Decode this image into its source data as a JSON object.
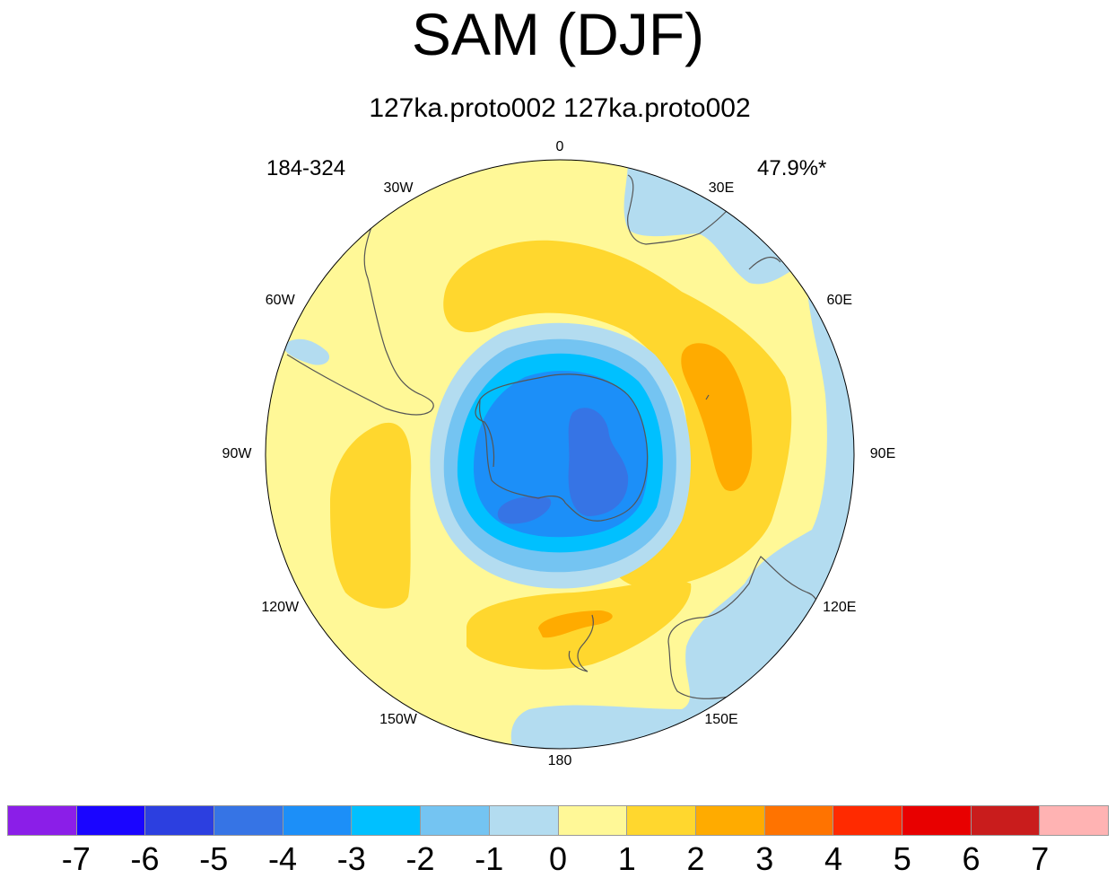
{
  "title": "SAM (DJF)",
  "subtitle": "127ka.proto002  127ka.proto002",
  "left_label": "184-324",
  "right_label": "47.9%*",
  "longitude_labels": [
    "0",
    "30E",
    "60E",
    "90E",
    "120E",
    "150E",
    "180",
    "150W",
    "120W",
    "90W",
    "60W",
    "30W"
  ],
  "colorbar": {
    "colors": [
      "#8b1ee8",
      "#1a05ff",
      "#2c3fe0",
      "#3674e5",
      "#1c8ff8",
      "#00c0ff",
      "#74c4f2",
      "#b3dcf0",
      "#fff897",
      "#ffd72e",
      "#ffab00",
      "#ff7300",
      "#ff2a00",
      "#e80000",
      "#c91c1c",
      "#ffb3b3"
    ],
    "labels": [
      "-7",
      "-6",
      "-5",
      "-4",
      "-3",
      "-2",
      "-1",
      "0",
      "1",
      "2",
      "3",
      "4",
      "5",
      "6",
      "7"
    ]
  }
}
